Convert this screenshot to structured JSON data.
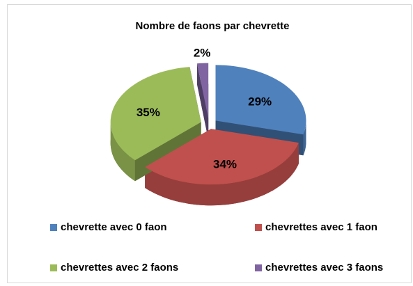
{
  "chart_data": {
    "type": "pie",
    "title": "Nombre de faons par chevrette",
    "categories": [
      "chevrette avec 0 faon",
      "chevrettes avec 1 faon",
      "chevrettes avec 2 faons",
      "chevrettes avec 3 faons"
    ],
    "values": [
      29,
      34,
      35,
      2
    ],
    "value_labels": [
      "29%",
      "34%",
      "35%",
      "2%"
    ],
    "colors": [
      "#4f81bd",
      "#c0504d",
      "#9bbb59",
      "#8064a2"
    ],
    "legend": "bottom"
  }
}
